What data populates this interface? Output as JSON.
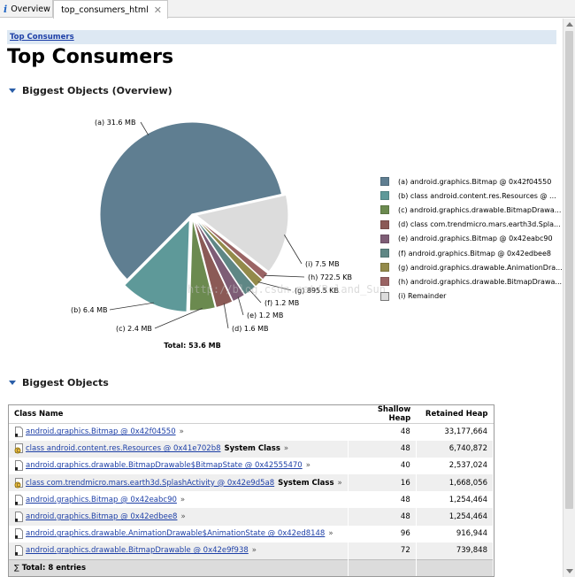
{
  "tabs": [
    {
      "label": "Overview",
      "icon": "info-icon"
    },
    {
      "label": "top_consumers_html",
      "icon": "html-icon",
      "close_icon": "close-icon"
    }
  ],
  "breadcrumb": "Top Consumers",
  "page_title": "Top Consumers",
  "section_overview": "Biggest Objects (Overview)",
  "section_objects": "Biggest Objects",
  "chart_data": {
    "type": "pie",
    "unit": "MB",
    "total_label": "Total: 53.6 MB",
    "slices": [
      {
        "key": "a",
        "label": "(a)  31.6 MB",
        "value": 31.6,
        "color": "#5f7e91",
        "legend": "(a)  android.graphics.Bitmap @ 0x42f04550"
      },
      {
        "key": "b",
        "label": "(b)  6.4 MB",
        "value": 6.4,
        "color": "#5e9999",
        "legend": "(b)  class android.content.res.Resources @ ..."
      },
      {
        "key": "c",
        "label": "(c)  2.4 MB",
        "value": 2.4,
        "color": "#6b8a4f",
        "legend": "(c)  android.graphics.drawable.BitmapDrawa..."
      },
      {
        "key": "d",
        "label": "(d)  1.6 MB",
        "value": 1.6,
        "color": "#8b5a56",
        "legend": "(d)  class com.trendmicro.mars.earth3d.Spla..."
      },
      {
        "key": "e",
        "label": "(e)  1.2 MB",
        "value": 1.2,
        "color": "#7e5d76",
        "legend": "(e)  android.graphics.Bitmap @ 0x42eabc90"
      },
      {
        "key": "f",
        "label": "(f)  1.2 MB",
        "value": 1.2,
        "color": "#5f8785",
        "legend": "(f)  android.graphics.Bitmap @ 0x42edbee8"
      },
      {
        "key": "g",
        "label": "(g)  895.5 KB",
        "value": 0.8955,
        "color": "#938a4a",
        "legend": "(g)  android.graphics.drawable.AnimationDra..."
      },
      {
        "key": "h",
        "label": "(h)  722.5 KB",
        "value": 0.7225,
        "color": "#9a6464",
        "legend": "(h)  android.graphics.drawable.BitmapDrawa..."
      },
      {
        "key": "i",
        "label": "(i)  7.5 MB",
        "value": 7.5,
        "color": "#dcdcdc",
        "legend": "(i)  Remainder"
      }
    ]
  },
  "table": {
    "headers": {
      "class_name": "Class Name",
      "shallow": "Shallow Heap",
      "retained": "Retained Heap"
    },
    "rows": [
      {
        "name": "android.graphics.Bitmap @ 0x42f04550",
        "system_class": "",
        "shallow": "48",
        "retained": "33,177,664",
        "icon": "object-icon"
      },
      {
        "name": "class android.content.res.Resources @ 0x41e702b8",
        "system_class": "System Class",
        "shallow": "48",
        "retained": "6,740,872",
        "icon": "class-object-icon"
      },
      {
        "name": "android.graphics.drawable.BitmapDrawable$BitmapState @ 0x42555470",
        "system_class": "",
        "shallow": "40",
        "retained": "2,537,024",
        "icon": "object-icon"
      },
      {
        "name": "class com.trendmicro.mars.earth3d.SplashActivity @ 0x42e9d5a8",
        "system_class": "System Class",
        "shallow": "16",
        "retained": "1,668,056",
        "icon": "class-object-icon"
      },
      {
        "name": "android.graphics.Bitmap @ 0x42eabc90",
        "system_class": "",
        "shallow": "48",
        "retained": "1,254,464",
        "icon": "object-icon"
      },
      {
        "name": "android.graphics.Bitmap @ 0x42edbee8",
        "system_class": "",
        "shallow": "48",
        "retained": "1,254,464",
        "icon": "object-icon"
      },
      {
        "name": "android.graphics.drawable.AnimationDrawable$AnimationState @ 0x42ed8148",
        "system_class": "",
        "shallow": "96",
        "retained": "916,944",
        "icon": "object-icon"
      },
      {
        "name": "android.graphics.drawable.BitmapDrawable @ 0x42e9f938",
        "system_class": "",
        "shallow": "72",
        "retained": "739,848",
        "icon": "object-icon"
      }
    ],
    "more_symbol": "»",
    "total_sigma": "∑",
    "total_label": "Total: 8 entries"
  },
  "watermark": "http://blog.csdn.net/Roland_Sun"
}
